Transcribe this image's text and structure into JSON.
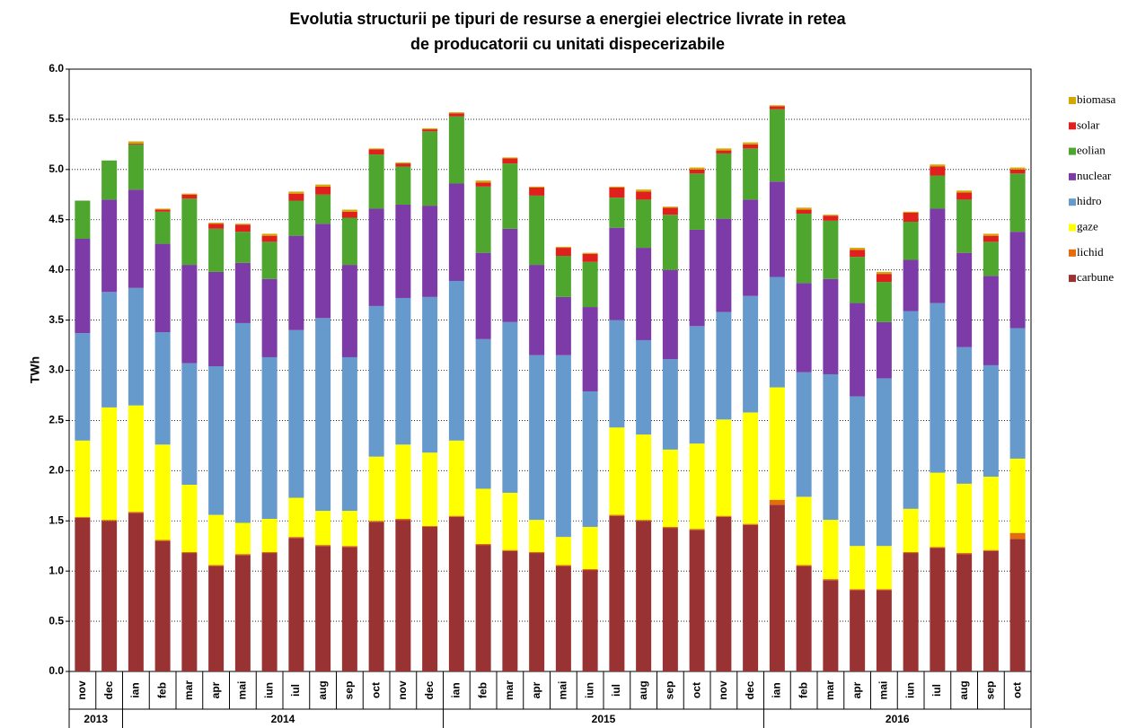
{
  "chart_data": {
    "type": "stacked_bar",
    "title": [
      "Evolutia structurii pe tipuri de resurse a energiei electrice livrate in retea",
      "de producatorii cu unitati dispecerizabile"
    ],
    "ylabel": "TWh",
    "categories": [
      "nov",
      "dec",
      "ian",
      "feb",
      "mar",
      "apr",
      "mai",
      "iun",
      "iul",
      "aug",
      "sep",
      "oct",
      "nov",
      "dec",
      "ian",
      "feb",
      "mar",
      "apr",
      "mai",
      "iun",
      "iul",
      "aug",
      "sep",
      "oct",
      "nov",
      "dec",
      "ian",
      "feb",
      "mar",
      "apr",
      "mai",
      "iun",
      "iul",
      "aug",
      "sep",
      "oct"
    ],
    "groups": [
      {
        "label": "2013",
        "size": 2
      },
      {
        "label": "2014",
        "size": 12
      },
      {
        "label": "2015",
        "size": 12
      },
      {
        "label": "2016",
        "size": 10
      }
    ],
    "ylim": [
      0,
      6
    ],
    "yticks": [
      {
        "value": 0,
        "label": "0.0"
      },
      0.5,
      {
        "value": 1,
        "label": "1.0"
      },
      1.5,
      {
        "value": 2,
        "label": "2.0"
      },
      2.5,
      {
        "value": 3,
        "label": "3.0"
      },
      3.5,
      {
        "value": 4,
        "label": "4.0"
      },
      4.5,
      {
        "value": 5,
        "label": "5.0"
      },
      5.5,
      {
        "value": 6,
        "label": "6.0"
      }
    ],
    "grid": true,
    "series": [
      {
        "name": "carbune",
        "color": "#993333",
        "values": [
          1.53,
          1.5,
          1.58,
          1.3,
          1.18,
          1.05,
          1.16,
          1.18,
          1.33,
          1.25,
          1.24,
          1.49,
          1.51,
          1.44,
          1.54,
          1.26,
          1.2,
          1.18,
          1.05,
          1.01,
          1.55,
          1.5,
          1.43,
          1.41,
          1.54,
          1.46,
          1.66,
          1.05,
          0.91,
          0.81,
          0.81,
          1.18,
          1.23,
          1.17,
          1.2,
          1.32
        ]
      },
      {
        "name": "lichid",
        "color": "#E46C0A",
        "values": [
          0.01,
          0.01,
          0.01,
          0.01,
          0.01,
          0.01,
          0.01,
          0.01,
          0.01,
          0.01,
          0.01,
          0.01,
          0.01,
          0.01,
          0.01,
          0.01,
          0.01,
          0.01,
          0.01,
          0.01,
          0.01,
          0.01,
          0.01,
          0.01,
          0.01,
          0.01,
          0.05,
          0.01,
          0.01,
          0.01,
          0.01,
          0.01,
          0.01,
          0.01,
          0.01,
          0.06
        ]
      },
      {
        "name": "gaze",
        "color": "#FFFF00",
        "values": [
          0.76,
          1.12,
          1.06,
          0.95,
          0.67,
          0.5,
          0.31,
          0.33,
          0.39,
          0.34,
          0.35,
          0.64,
          0.74,
          0.73,
          0.75,
          0.55,
          0.57,
          0.32,
          0.28,
          0.42,
          0.87,
          0.85,
          0.77,
          0.85,
          0.96,
          1.11,
          1.12,
          0.68,
          0.59,
          0.43,
          0.43,
          0.43,
          0.74,
          0.69,
          0.73,
          0.74
        ]
      },
      {
        "name": "hidro",
        "color": "#6699CC",
        "values": [
          1.07,
          1.15,
          1.17,
          1.12,
          1.21,
          1.48,
          1.99,
          1.61,
          1.67,
          1.92,
          1.53,
          1.5,
          1.46,
          1.55,
          1.59,
          1.49,
          1.7,
          1.64,
          1.81,
          1.35,
          1.07,
          0.94,
          0.9,
          1.17,
          1.07,
          1.16,
          1.1,
          1.24,
          1.45,
          1.49,
          1.67,
          1.97,
          1.69,
          1.36,
          1.11,
          1.3
        ]
      },
      {
        "name": "nuclear",
        "color": "#7D3BA8",
        "values": [
          0.94,
          0.92,
          0.98,
          0.88,
          0.98,
          0.94,
          0.6,
          0.78,
          0.94,
          0.94,
          0.92,
          0.97,
          0.93,
          0.91,
          0.97,
          0.86,
          0.93,
          0.9,
          0.58,
          0.84,
          0.92,
          0.92,
          0.89,
          0.96,
          0.93,
          0.96,
          0.95,
          0.89,
          0.95,
          0.93,
          0.56,
          0.51,
          0.94,
          0.94,
          0.89,
          0.96
        ]
      },
      {
        "name": "eolian",
        "color": "#4EA62F",
        "values": [
          0.38,
          0.39,
          0.45,
          0.32,
          0.66,
          0.43,
          0.31,
          0.37,
          0.35,
          0.29,
          0.47,
          0.54,
          0.38,
          0.74,
          0.67,
          0.66,
          0.65,
          0.69,
          0.41,
          0.45,
          0.3,
          0.48,
          0.55,
          0.56,
          0.65,
          0.51,
          0.72,
          0.69,
          0.58,
          0.46,
          0.4,
          0.38,
          0.33,
          0.53,
          0.34,
          0.58
        ]
      },
      {
        "name": "solar",
        "color": "#E0201C",
        "values": [
          0,
          0,
          0.01,
          0.02,
          0.04,
          0.05,
          0.07,
          0.06,
          0.07,
          0.08,
          0.06,
          0.05,
          0.03,
          0.02,
          0.03,
          0.04,
          0.05,
          0.08,
          0.08,
          0.08,
          0.1,
          0.08,
          0.07,
          0.04,
          0.03,
          0.04,
          0.03,
          0.04,
          0.05,
          0.07,
          0.08,
          0.09,
          0.09,
          0.07,
          0.06,
          0.04
        ]
      },
      {
        "name": "biomasa",
        "color": "#D4A800",
        "values": [
          0,
          0,
          0.02,
          0.01,
          0.01,
          0.01,
          0.01,
          0.02,
          0.02,
          0.02,
          0.02,
          0.01,
          0.01,
          0.01,
          0.01,
          0.02,
          0.01,
          0.01,
          0.01,
          0.01,
          0.01,
          0.02,
          0.01,
          0.02,
          0.02,
          0.02,
          0.01,
          0.02,
          0.01,
          0.02,
          0.02,
          0.01,
          0.02,
          0.02,
          0.02,
          0.02
        ]
      }
    ]
  }
}
